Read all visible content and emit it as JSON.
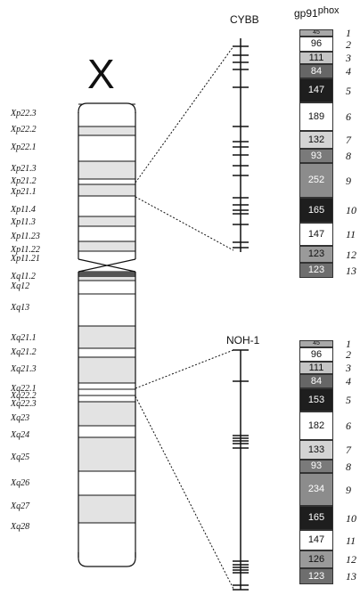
{
  "chromosome": {
    "label": "X",
    "bands": [
      {
        "name": "Xp22.3",
        "shade": "white"
      },
      {
        "name": "Xp22.2",
        "shade": "gray"
      },
      {
        "name": "Xp22.1",
        "shade": "white"
      },
      {
        "name": "Xp21.3",
        "shade": "gray"
      },
      {
        "name": "Xp21.2",
        "shade": "white"
      },
      {
        "name": "Xp21.1",
        "shade": "gray"
      },
      {
        "name": "Xp11.4",
        "shade": "white"
      },
      {
        "name": "Xp11.3",
        "shade": "gray"
      },
      {
        "name": "Xp11.23",
        "shade": "white"
      },
      {
        "name": "Xp11.22",
        "shade": "gray"
      },
      {
        "name": "Xp11.21",
        "shade": "white"
      },
      {
        "name": "Xq11.2",
        "shade": "gray"
      },
      {
        "name": "Xq12",
        "shade": "white"
      },
      {
        "name": "Xq13",
        "shade": "white"
      },
      {
        "name": "Xq21.1",
        "shade": "gray"
      },
      {
        "name": "Xq21.2",
        "shade": "white"
      },
      {
        "name": "Xq21.3",
        "shade": "gray"
      },
      {
        "name": "Xq22.1",
        "shade": "white"
      },
      {
        "name": "Xq22.2",
        "shade": "white"
      },
      {
        "name": "Xq22.3",
        "shade": "white"
      },
      {
        "name": "Xq23",
        "shade": "gray"
      },
      {
        "name": "Xq24",
        "shade": "white"
      },
      {
        "name": "Xq25",
        "shade": "gray"
      },
      {
        "name": "Xq26",
        "shade": "white"
      },
      {
        "name": "Xq27",
        "shade": "gray"
      },
      {
        "name": "Xq28",
        "shade": "white"
      }
    ]
  },
  "genes": [
    {
      "name": "CYBB",
      "protein": "gp91",
      "protein_sup": "phox",
      "exons": [
        {
          "number": "1",
          "size": "45",
          "color": "#a8a8a8"
        },
        {
          "number": "2",
          "size": "96",
          "color": "#ffffff"
        },
        {
          "number": "3",
          "size": "111",
          "color": "#c4c4c4"
        },
        {
          "number": "4",
          "size": "84",
          "color": "#666666"
        },
        {
          "number": "5",
          "size": "147",
          "color": "#1e1e1e"
        },
        {
          "number": "6",
          "size": "189",
          "color": "#ffffff"
        },
        {
          "number": "7",
          "size": "132",
          "color": "#d4d4d4"
        },
        {
          "number": "8",
          "size": "93",
          "color": "#7a7a7a"
        },
        {
          "number": "9",
          "size": "252",
          "color": "#8c8c8c"
        },
        {
          "number": "10",
          "size": "165",
          "color": "#1e1e1e"
        },
        {
          "number": "11",
          "size": "147",
          "color": "#ffffff"
        },
        {
          "number": "12",
          "size": "123",
          "color": "#9a9a9a"
        },
        {
          "number": "13",
          "size": "123",
          "color": "#6e6e6e"
        }
      ]
    },
    {
      "name": "NOH-1",
      "exons": [
        {
          "number": "1",
          "size": "45",
          "color": "#a8a8a8"
        },
        {
          "number": "2",
          "size": "96",
          "color": "#ffffff"
        },
        {
          "number": "3",
          "size": "111",
          "color": "#c4c4c4"
        },
        {
          "number": "4",
          "size": "84",
          "color": "#666666"
        },
        {
          "number": "5",
          "size": "153",
          "color": "#1e1e1e"
        },
        {
          "number": "6",
          "size": "182",
          "color": "#ffffff"
        },
        {
          "number": "7",
          "size": "133",
          "color": "#d4d4d4"
        },
        {
          "number": "8",
          "size": "93",
          "color": "#7a7a7a"
        },
        {
          "number": "9",
          "size": "234",
          "color": "#8c8c8c"
        },
        {
          "number": "10",
          "size": "165",
          "color": "#1e1e1e"
        },
        {
          "number": "11",
          "size": "147",
          "color": "#ffffff"
        },
        {
          "number": "12",
          "size": "126",
          "color": "#9a9a9a"
        },
        {
          "number": "13",
          "size": "123",
          "color": "#6e6e6e"
        }
      ]
    }
  ]
}
